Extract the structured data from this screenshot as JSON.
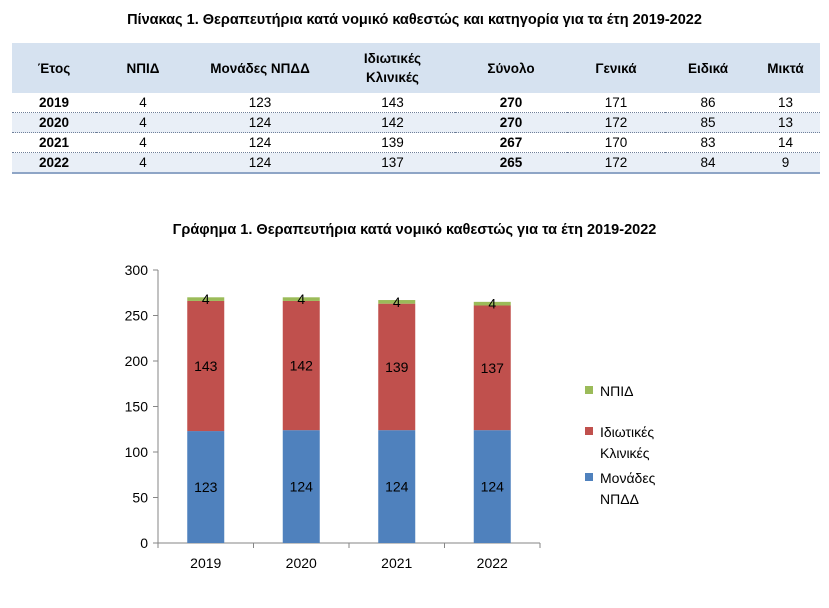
{
  "table": {
    "title": "Πίνακας 1. Θεραπευτήρια κατά νομικό καθεστώς και κατηγορία για τα έτη 2019-2022",
    "headers": [
      "Έτος",
      "ΝΠΙΔ",
      "Μονάδες ΝΠΔΔ",
      "Ιδιωτικές\nΚλινικές",
      "Σύνολο",
      "Γενικά",
      "Ειδικά",
      "Μικτά"
    ],
    "rows": [
      [
        "2019",
        "4",
        "123",
        "143",
        "270",
        "171",
        "86",
        "13"
      ],
      [
        "2020",
        "4",
        "124",
        "142",
        "270",
        "172",
        "85",
        "13"
      ],
      [
        "2021",
        "4",
        "124",
        "139",
        "267",
        "170",
        "83",
        "14"
      ],
      [
        "2022",
        "4",
        "124",
        "137",
        "265",
        "172",
        "84",
        "9"
      ]
    ]
  },
  "chart_data": {
    "type": "bar",
    "stacked": true,
    "title": "Γράφημα 1. Θεραπευτήρια κατά νομικό καθεστώς για τα έτη 2019-2022",
    "categories": [
      "2019",
      "2020",
      "2021",
      "2022"
    ],
    "series": [
      {
        "name": "Μονάδες ΝΠΔΔ",
        "values": [
          123,
          124,
          124,
          124
        ],
        "color": "#4f81bd"
      },
      {
        "name": "Ιδιωτικές Κλινικές",
        "values": [
          143,
          142,
          139,
          137
        ],
        "color": "#c0504d"
      },
      {
        "name": "ΝΠΙΔ",
        "values": [
          4,
          4,
          4,
          4
        ],
        "color": "#9bbb59"
      }
    ],
    "legend_order": [
      "ΝΠΙΔ",
      "Ιδιωτικές Κλινικές",
      "Μονάδες ΝΠΔΔ"
    ],
    "ylim": [
      0,
      300
    ],
    "yticks": [
      0,
      50,
      100,
      150,
      200,
      250,
      300
    ],
    "grid": false,
    "legend_position": "right",
    "data_labels": true
  }
}
